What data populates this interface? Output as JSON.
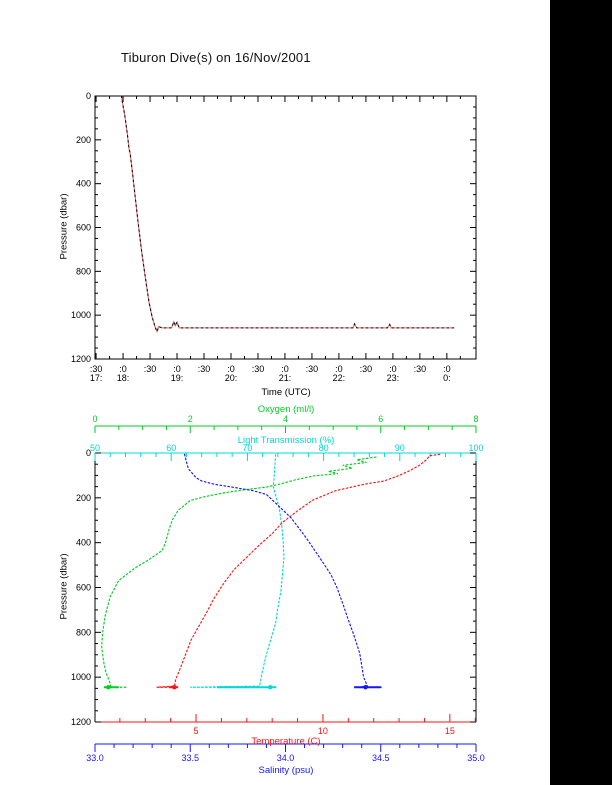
{
  "title": "Tiburon Dive(s) on 16/Nov/2001",
  "labels": {
    "pressure": "Pressure (dbar)",
    "time": "Time (UTC)",
    "oxygen": "Oxygen (ml/l)",
    "light": "Light Transmission (%)",
    "temperature": "Temperature (C)",
    "salinity": "Salinity (psu)"
  },
  "colors": {
    "background": "#ffffff",
    "right_bar": "#000000",
    "frame": "#000000",
    "track_base": "#d96a6a",
    "track_dash": "#1a0a0a",
    "oxygen": "#00cc22",
    "light": "#00d8d8",
    "temperature": "#ff1313",
    "salinity": "#1515ff"
  },
  "chart_data": [
    {
      "id": "depth-vs-time",
      "type": "line",
      "title": "Tiburon Dive(s) on 16/Nov/2001",
      "xlabel": "Time (UTC)",
      "ylabel": "Pressure (dbar)",
      "xlim": [
        17.48,
        24.54
      ],
      "ylim": [
        0,
        1200
      ],
      "y_inverted": true,
      "grid": false,
      "x_ticks": [
        17.5,
        18.0,
        18.5,
        19.0,
        19.5,
        20.0,
        20.5,
        21.0,
        21.5,
        22.0,
        22.5,
        23.0,
        23.5,
        24.0
      ],
      "x_tick_minute_labels": [
        ":30",
        ":0",
        ":30",
        ":0",
        ":30",
        ":0",
        ":30",
        ":0",
        ":30",
        ":0",
        ":30",
        ":0",
        ":30",
        ":0"
      ],
      "x_tick_hour_labels": [
        "17:",
        "18:",
        "",
        "19:",
        "",
        "20:",
        "",
        "21:",
        "",
        "22:",
        "",
        "23:",
        "",
        "0:"
      ],
      "y_ticks": [
        0,
        200,
        400,
        600,
        800,
        1000,
        1200
      ],
      "y_tick_labels": [
        "0",
        "200",
        "400",
        "600",
        "800",
        "1000",
        "1200"
      ],
      "y_minor_step": 50,
      "series": [
        {
          "name": "dive-track",
          "points": [
            [
              17.97,
              0
            ],
            [
              18.0,
              45
            ],
            [
              18.03,
              85
            ],
            [
              18.05,
              120
            ],
            [
              18.08,
              175
            ],
            [
              18.11,
              240
            ],
            [
              18.13,
              260
            ],
            [
              18.17,
              340
            ],
            [
              18.22,
              450
            ],
            [
              18.28,
              580
            ],
            [
              18.35,
              720
            ],
            [
              18.42,
              840
            ],
            [
              18.48,
              940
            ],
            [
              18.54,
              1010
            ],
            [
              18.6,
              1058
            ],
            [
              18.63,
              1075
            ],
            [
              18.66,
              1052
            ],
            [
              18.72,
              1058
            ],
            [
              18.9,
              1058
            ],
            [
              18.94,
              1030
            ],
            [
              18.97,
              1048
            ],
            [
              19.0,
              1032
            ],
            [
              19.04,
              1058
            ],
            [
              22.26,
              1058
            ],
            [
              22.29,
              1040
            ],
            [
              22.33,
              1058
            ],
            [
              22.9,
              1058
            ],
            [
              22.94,
              1042
            ],
            [
              22.97,
              1058
            ],
            [
              24.13,
              1058
            ]
          ]
        }
      ]
    },
    {
      "id": "profiles-vs-pressure",
      "type": "scatter",
      "ylabel": "Pressure (dbar)",
      "ylim": [
        0,
        1200
      ],
      "y_inverted": true,
      "y_ticks": [
        0,
        200,
        400,
        600,
        800,
        1000,
        1200
      ],
      "y_tick_labels": [
        "0",
        "200",
        "400",
        "600",
        "800",
        "1000",
        "1200"
      ],
      "y_minor_step": 50,
      "axes": {
        "oxygen": {
          "label": "Oxygen (ml/l)",
          "lim": [
            0,
            8
          ],
          "ticks": [
            0,
            2,
            4,
            6,
            8
          ],
          "tick_labels": [
            "0",
            "2",
            "4",
            "6",
            "8"
          ],
          "minor_step": 0.5
        },
        "light": {
          "label": "Light Transmission (%)",
          "lim": [
            50,
            100
          ],
          "ticks": [
            50,
            60,
            70,
            80,
            90,
            100
          ],
          "tick_labels": [
            "50",
            "60",
            "70",
            "80",
            "90",
            "100"
          ],
          "minor_step": 2
        },
        "temperature": {
          "label": "Temperature (C)",
          "lim": [
            1.02,
            16.03
          ],
          "ticks": [
            5,
            10,
            15
          ],
          "tick_labels": [
            "5",
            "10",
            "15"
          ],
          "minor_step": 1
        },
        "salinity": {
          "label": "Salinity (psu)",
          "lim": [
            33.0,
            35.0
          ],
          "ticks": [
            33.0,
            33.5,
            34.0,
            34.5,
            35.0
          ],
          "tick_labels": [
            "33.0",
            "33.5",
            "34.0",
            "34.5",
            "35.0"
          ],
          "minor_step": 0.1
        }
      },
      "series": [
        {
          "name": "oxygen",
          "axis": "oxygen",
          "points": [
            [
              5.9,
              18
            ],
            [
              5.5,
              30
            ],
            [
              5.7,
              42
            ],
            [
              5.2,
              55
            ],
            [
              5.4,
              68
            ],
            [
              4.9,
              82
            ],
            [
              5.1,
              92
            ],
            [
              4.6,
              102
            ],
            [
              4.2,
              120
            ],
            [
              3.9,
              138
            ],
            [
              3.6,
              152
            ],
            [
              3.1,
              165
            ],
            [
              2.7,
              178
            ],
            [
              2.3,
              195
            ],
            [
              2.0,
              212
            ],
            [
              1.75,
              255
            ],
            [
              1.62,
              300
            ],
            [
              1.55,
              345
            ],
            [
              1.48,
              400
            ],
            [
              1.41,
              435
            ],
            [
              1.1,
              480
            ],
            [
              0.86,
              510
            ],
            [
              0.5,
              568
            ],
            [
              0.32,
              640
            ],
            [
              0.22,
              720
            ],
            [
              0.16,
              800
            ],
            [
              0.14,
              865
            ],
            [
              0.18,
              930
            ],
            [
              0.23,
              980
            ],
            [
              0.3,
              1015
            ],
            [
              0.33,
              1040
            ],
            [
              0.19,
              1045
            ],
            [
              0.65,
              1045
            ]
          ],
          "bold_tail": [
            0.19,
            0.5,
            1045
          ],
          "knot": [
            0.28,
            1045
          ]
        },
        {
          "name": "light-transmission",
          "axis": "light",
          "points": [
            [
              73.7,
              8
            ],
            [
              73.6,
              60
            ],
            [
              73.5,
              110
            ],
            [
              73.4,
              150
            ],
            [
              73.8,
              200
            ],
            [
              74.2,
              250
            ],
            [
              74.5,
              320
            ],
            [
              74.7,
              400
            ],
            [
              74.8,
              465
            ],
            [
              74.6,
              540
            ],
            [
              74.4,
              615
            ],
            [
              74.0,
              690
            ],
            [
              73.7,
              760
            ],
            [
              73.0,
              840
            ],
            [
              72.4,
              910
            ],
            [
              71.9,
              985
            ],
            [
              71.6,
              1040
            ],
            [
              62.5,
              1045
            ],
            [
              73.8,
              1045
            ]
          ],
          "bold_tail": [
            66.0,
            73.8,
            1045
          ],
          "knot": [
            73.0,
            1045
          ]
        },
        {
          "name": "temperature",
          "axis": "temperature",
          "points": [
            [
              14.6,
              6
            ],
            [
              14.2,
              12
            ],
            [
              14.1,
              28
            ],
            [
              13.8,
              55
            ],
            [
              13.4,
              80
            ],
            [
              12.9,
              105
            ],
            [
              12.4,
              125
            ],
            [
              11.6,
              140
            ],
            [
              10.5,
              168
            ],
            [
              9.6,
              210
            ],
            [
              9.0,
              258
            ],
            [
              8.4,
              310
            ],
            [
              8.0,
              360
            ],
            [
              7.5,
              410
            ],
            [
              7.0,
              465
            ],
            [
              6.5,
              520
            ],
            [
              6.1,
              580
            ],
            [
              5.7,
              650
            ],
            [
              5.4,
              715
            ],
            [
              5.1,
              775
            ],
            [
              4.8,
              835
            ],
            [
              4.6,
              895
            ],
            [
              4.4,
              955
            ],
            [
              4.2,
              1010
            ],
            [
              4.15,
              1040
            ],
            [
              3.46,
              1045
            ],
            [
              4.25,
              1045
            ]
          ],
          "bold_tail": [
            3.95,
            4.3,
            1045
          ],
          "knot": [
            4.15,
            1045
          ]
        },
        {
          "name": "salinity",
          "axis": "salinity",
          "points": [
            [
              33.47,
              6
            ],
            [
              33.48,
              40
            ],
            [
              33.49,
              70
            ],
            [
              33.51,
              90
            ],
            [
              33.53,
              110
            ],
            [
              33.56,
              125
            ],
            [
              33.63,
              140
            ],
            [
              33.74,
              155
            ],
            [
              33.83,
              168
            ],
            [
              33.9,
              185
            ],
            [
              33.95,
              225
            ],
            [
              34.03,
              290
            ],
            [
              34.11,
              380
            ],
            [
              34.19,
              480
            ],
            [
              34.24,
              545
            ],
            [
              34.27,
              600
            ],
            [
              34.3,
              670
            ],
            [
              34.33,
              745
            ],
            [
              34.36,
              815
            ],
            [
              34.39,
              895
            ],
            [
              34.41,
              1000
            ],
            [
              34.43,
              1040
            ],
            [
              34.38,
              1045
            ],
            [
              34.51,
              1045
            ]
          ],
          "bold_tail": [
            34.36,
            34.5,
            1045
          ],
          "knot": [
            34.42,
            1045
          ]
        }
      ]
    }
  ]
}
